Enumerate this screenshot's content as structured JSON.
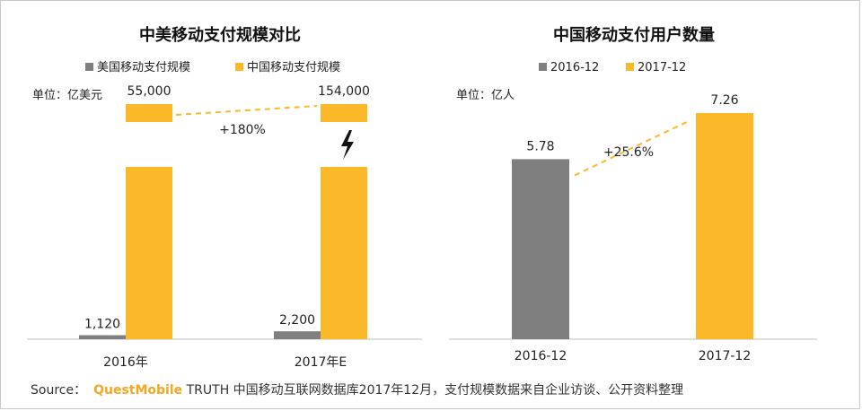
{
  "colors": {
    "gray": "#7f7f7f",
    "orange": "#fbb829",
    "dash": "#fbb829",
    "text": "#222222",
    "axis": "#bfbfbf"
  },
  "chart_data": [
    {
      "type": "bar",
      "title": "中美移动支付规模对比",
      "unit": "单位：亿美元",
      "categories": [
        "2016年",
        "2017年E"
      ],
      "legend_position": "top",
      "series": [
        {
          "name": "美国移动支付规模",
          "color": "#7f7f7f",
          "values": [
            1120,
            2200
          ],
          "labels": [
            "1,120",
            "2,200"
          ]
        },
        {
          "name": "中国移动支付规模",
          "color": "#fbb829",
          "values": [
            55000,
            154000
          ],
          "labels": [
            "55,000",
            "154,000"
          ]
        }
      ],
      "broken_axis": true,
      "growth_annotation": "+180%",
      "annotation_icon": "lightning-icon"
    },
    {
      "type": "bar",
      "title": "中国移动支付用户数量",
      "unit": "单位：亿人",
      "categories": [
        "2016-12",
        "2017-12"
      ],
      "legend_position": "top",
      "legend": [
        {
          "name": "2016-12",
          "color": "#7f7f7f"
        },
        {
          "name": "2017-12",
          "color": "#fbb829"
        }
      ],
      "values": [
        5.78,
        7.26
      ],
      "labels": [
        "5.78",
        "7.26"
      ],
      "colors": [
        "#7f7f7f",
        "#fbb829"
      ],
      "growth_annotation": "+25.6%"
    }
  ],
  "source": {
    "prefix": "Source：",
    "brand": "QuestMobile",
    "text": "TRUTH 中国移动互联网数据库2017年12月，支付规模数据来自企业访谈、公开资料整理"
  }
}
